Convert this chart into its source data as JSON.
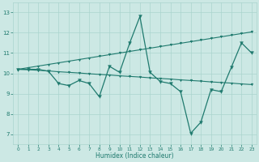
{
  "xlabel": "Humidex (Indice chaleur)",
  "x": [
    0,
    1,
    2,
    3,
    4,
    5,
    6,
    7,
    8,
    9,
    10,
    11,
    12,
    13,
    14,
    15,
    16,
    17,
    18,
    19,
    20,
    21,
    22,
    23
  ],
  "line_main": [
    10.2,
    10.2,
    10.2,
    10.1,
    9.5,
    9.4,
    9.65,
    9.5,
    8.85,
    10.35,
    10.05,
    11.5,
    12.8,
    10.05,
    9.6,
    9.5,
    9.1,
    7.05,
    7.6,
    9.2,
    9.1,
    10.3,
    11.5,
    11.0
  ],
  "line_low": [
    10.2,
    10.18,
    10.15,
    10.12,
    10.08,
    10.05,
    10.02,
    9.98,
    9.95,
    9.92,
    9.88,
    9.85,
    9.82,
    9.78,
    9.75,
    9.72,
    9.68,
    9.65,
    9.62,
    9.58,
    9.55,
    9.52,
    9.48,
    9.45
  ],
  "line_high": [
    10.2,
    10.28,
    10.36,
    10.44,
    10.52,
    10.6,
    10.68,
    10.76,
    10.84,
    10.92,
    11.0,
    11.08,
    11.16,
    11.24,
    11.32,
    11.4,
    11.48,
    11.56,
    11.64,
    11.72,
    11.8,
    11.88,
    11.96,
    12.04
  ],
  "color": "#1f7a6e",
  "bg_color": "#cce8e4",
  "grid_color": "#aad4ce",
  "text_color": "#1f7a6e",
  "ylim": [
    6.5,
    13.5
  ],
  "xlim": [
    -0.5,
    23.5
  ],
  "yticks": [
    7,
    8,
    9,
    10,
    11,
    12,
    13
  ],
  "xticks": [
    0,
    1,
    2,
    3,
    4,
    5,
    6,
    7,
    8,
    9,
    10,
    11,
    12,
    13,
    14,
    15,
    16,
    17,
    18,
    19,
    20,
    21,
    22,
    23
  ]
}
